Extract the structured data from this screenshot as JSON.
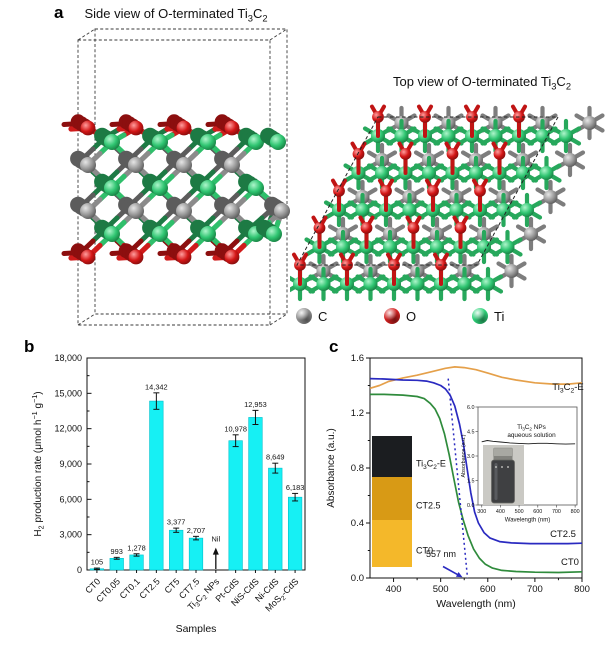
{
  "panels": {
    "a": {
      "label": "a",
      "side_title": [
        [
          "Side view of O-terminated Ti"
        ],
        [
          "3",
          "sub"
        ],
        [
          "C"
        ],
        [
          "2",
          "sub"
        ]
      ],
      "top_title": [
        [
          "Top view of O-terminated Ti"
        ],
        [
          "3",
          "sub"
        ],
        [
          "C"
        ],
        [
          "2",
          "sub"
        ]
      ],
      "legend": [
        {
          "label": "C",
          "color": "#8f8f8f",
          "icon": "carbon-atom-icon"
        },
        {
          "label": "O",
          "color": "#d42020",
          "icon": "oxygen-atom-icon"
        },
        {
          "label": "Ti",
          "color": "#2ed47a",
          "icon": "titanium-atom-icon"
        }
      ],
      "atom_colors": {
        "C": "#8b8b8b",
        "O": "#cf1b1b",
        "Ti": "#2fbf6b"
      },
      "atom_colors_dark": {
        "C": "#5c5c5c",
        "O": "#8c0f0f",
        "Ti": "#1d7a44"
      }
    },
    "b": {
      "label": "b"
    },
    "c": {
      "label": "c"
    }
  },
  "chart_data": [
    {
      "id": "h2-production",
      "type": "bar",
      "xlabel": "Samples",
      "ylabel_segments": [
        [
          "H"
        ],
        [
          "2",
          "sub"
        ],
        [
          " production rate (μmol h"
        ],
        [
          "−1",
          "sup"
        ],
        [
          " g"
        ],
        [
          "−1",
          "sup"
        ],
        [
          ")"
        ]
      ],
      "categories_segments": [
        [
          [
            "CT0"
          ]
        ],
        [
          [
            "CT0.05"
          ]
        ],
        [
          [
            "CT0.1"
          ]
        ],
        [
          [
            "CT2.5"
          ]
        ],
        [
          [
            "CT5"
          ]
        ],
        [
          [
            "CT7.5"
          ]
        ],
        [
          [
            "Ti"
          ],
          [
            "3",
            "sub"
          ],
          [
            "C"
          ],
          [
            "2",
            "sub"
          ],
          [
            " NPs"
          ]
        ],
        [
          [
            "Pt-CdS"
          ]
        ],
        [
          [
            "NiS-CdS"
          ]
        ],
        [
          [
            "Ni-CdS"
          ]
        ],
        [
          [
            "MoS"
          ],
          [
            "2",
            "sub"
          ],
          [
            "-CdS"
          ]
        ]
      ],
      "values": [
        105,
        993,
        1278,
        14342,
        3377,
        2707,
        null,
        10978,
        12953,
        8649,
        6183
      ],
      "value_labels": [
        "105",
        "993",
        "1,278",
        "14,342",
        "3,377",
        "2,707",
        "Nil",
        "10,978",
        "12,953",
        "8,649",
        "6,183"
      ],
      "errors": [
        60,
        80,
        100,
        700,
        180,
        150,
        0,
        500,
        600,
        420,
        320
      ],
      "ylim": [
        0,
        18000
      ],
      "ytick_step": 3000,
      "ytick_minor_step": 1500,
      "ytick_labels": [
        "0",
        "3,000",
        "6,000",
        "9,000",
        "12,000",
        "15,000",
        "18,000"
      ],
      "bar_color": "#16f0f4",
      "bar_edge": "#00c0cc",
      "nil_index": 6
    },
    {
      "id": "absorbance-main",
      "type": "line",
      "xlabel": "Wavelength (nm)",
      "ylabel": "Absorbance (a.u.)",
      "xlim": [
        350,
        800
      ],
      "ylim": [
        0,
        1.6
      ],
      "xticks": [
        400,
        500,
        600,
        700,
        800
      ],
      "xtick_labels": [
        "400",
        "500",
        "600",
        "700",
        "800"
      ],
      "ytick_vals": [
        0,
        0.4,
        0.8,
        1.2,
        1.6
      ],
      "ytick_labels": [
        "0.0",
        "0.4",
        "0.8",
        "1.2",
        "1.6"
      ],
      "annotation": {
        "text": "557 nm",
        "x_nm": 557
      },
      "series": [
        {
          "name_segments": [
            [
              "Ti"
            ],
            [
              "3",
              "sub"
            ],
            [
              "C"
            ],
            [
              "2",
              "sub"
            ],
            [
              "-E"
            ]
          ],
          "color": "#e5a04a",
          "points": [
            [
              350,
              1.38
            ],
            [
              370,
              1.4
            ],
            [
              390,
              1.43
            ],
            [
              420,
              1.455
            ],
            [
              450,
              1.475
            ],
            [
              480,
              1.5
            ],
            [
              510,
              1.525
            ],
            [
              530,
              1.535
            ],
            [
              550,
              1.53
            ],
            [
              575,
              1.515
            ],
            [
              600,
              1.49
            ],
            [
              630,
              1.46
            ],
            [
              660,
              1.44
            ],
            [
              700,
              1.42
            ],
            [
              740,
              1.41
            ],
            [
              770,
              1.41
            ],
            [
              800,
              1.42
            ]
          ]
        },
        {
          "name_segments": [
            [
              "CT2.5"
            ]
          ],
          "color": "#2a2ac0",
          "points": [
            [
              350,
              1.45
            ],
            [
              380,
              1.447
            ],
            [
              420,
              1.44
            ],
            [
              450,
              1.438
            ],
            [
              470,
              1.432
            ],
            [
              485,
              1.42
            ],
            [
              500,
              1.4
            ],
            [
              510,
              1.375
            ],
            [
              520,
              1.33
            ],
            [
              530,
              1.25
            ],
            [
              540,
              1.12
            ],
            [
              548,
              0.98
            ],
            [
              556,
              0.8
            ],
            [
              564,
              0.62
            ],
            [
              572,
              0.48
            ],
            [
              580,
              0.4
            ],
            [
              592,
              0.33
            ],
            [
              605,
              0.29
            ],
            [
              625,
              0.265
            ],
            [
              650,
              0.255
            ],
            [
              690,
              0.25
            ],
            [
              730,
              0.25
            ],
            [
              770,
              0.25
            ],
            [
              800,
              0.253
            ]
          ]
        },
        {
          "name_segments": [
            [
              "CT0"
            ]
          ],
          "color": "#2f8b3c",
          "points": [
            [
              350,
              1.335
            ],
            [
              380,
              1.335
            ],
            [
              420,
              1.33
            ],
            [
              450,
              1.32
            ],
            [
              465,
              1.305
            ],
            [
              478,
              1.27
            ],
            [
              488,
              1.23
            ],
            [
              498,
              1.16
            ],
            [
              508,
              1.05
            ],
            [
              518,
              0.9
            ],
            [
              528,
              0.72
            ],
            [
              538,
              0.55
            ],
            [
              548,
              0.42
            ],
            [
              558,
              0.31
            ],
            [
              570,
              0.21
            ],
            [
              582,
              0.145
            ],
            [
              595,
              0.1
            ],
            [
              610,
              0.072
            ],
            [
              630,
              0.055
            ],
            [
              660,
              0.047
            ],
            [
              700,
              0.042
            ],
            [
              750,
              0.04
            ],
            [
              800,
              0.045
            ]
          ]
        }
      ],
      "swatches": [
        {
          "label_segments": [
            [
              "Ti"
            ],
            [
              "3",
              "sub"
            ],
            [
              "C"
            ],
            [
              "2",
              "sub"
            ],
            [
              "-E"
            ]
          ],
          "color": "#1b1d20"
        },
        {
          "label_segments": [
            [
              "CT2.5"
            ]
          ],
          "color": "#d89a15"
        },
        {
          "label_segments": [
            [
              "CT0"
            ]
          ],
          "color": "#f4b82a"
        }
      ]
    },
    {
      "id": "absorbance-inset",
      "type": "line",
      "xlabel": "Wavelength (nm)",
      "ylabel": "Absorbance (a.u.)",
      "xlim": [
        300,
        800
      ],
      "ylim": [
        0,
        6
      ],
      "xtick_labels": [
        "300",
        "400",
        "500",
        "600",
        "700",
        "800"
      ],
      "xticks": [
        300,
        400,
        500,
        600,
        700,
        800
      ],
      "ytick_vals": [
        0,
        1.5,
        3,
        4.5,
        6
      ],
      "ytick_labels": [
        "0.0",
        "1.5",
        "3.0",
        "4.5",
        "6.0"
      ],
      "note_lines_segments": [
        [
          [
            "Ti"
          ],
          [
            "3",
            "sub"
          ],
          [
            "C"
          ],
          [
            "2",
            "sub"
          ],
          [
            " NPs"
          ]
        ],
        [
          [
            "aqueous solution"
          ]
        ]
      ],
      "series": [
        {
          "name": "Ti3C2 NPs aqueous solution",
          "color": "#1c1c1c",
          "points": [
            [
              300,
              3.87
            ],
            [
              330,
              3.95
            ],
            [
              360,
              3.9
            ],
            [
              400,
              3.86
            ],
            [
              450,
              3.8
            ],
            [
              500,
              3.77
            ],
            [
              550,
              3.75
            ],
            [
              600,
              3.78
            ],
            [
              650,
              3.78
            ],
            [
              700,
              3.75
            ],
            [
              750,
              3.73
            ],
            [
              800,
              3.75
            ]
          ]
        }
      ]
    }
  ]
}
